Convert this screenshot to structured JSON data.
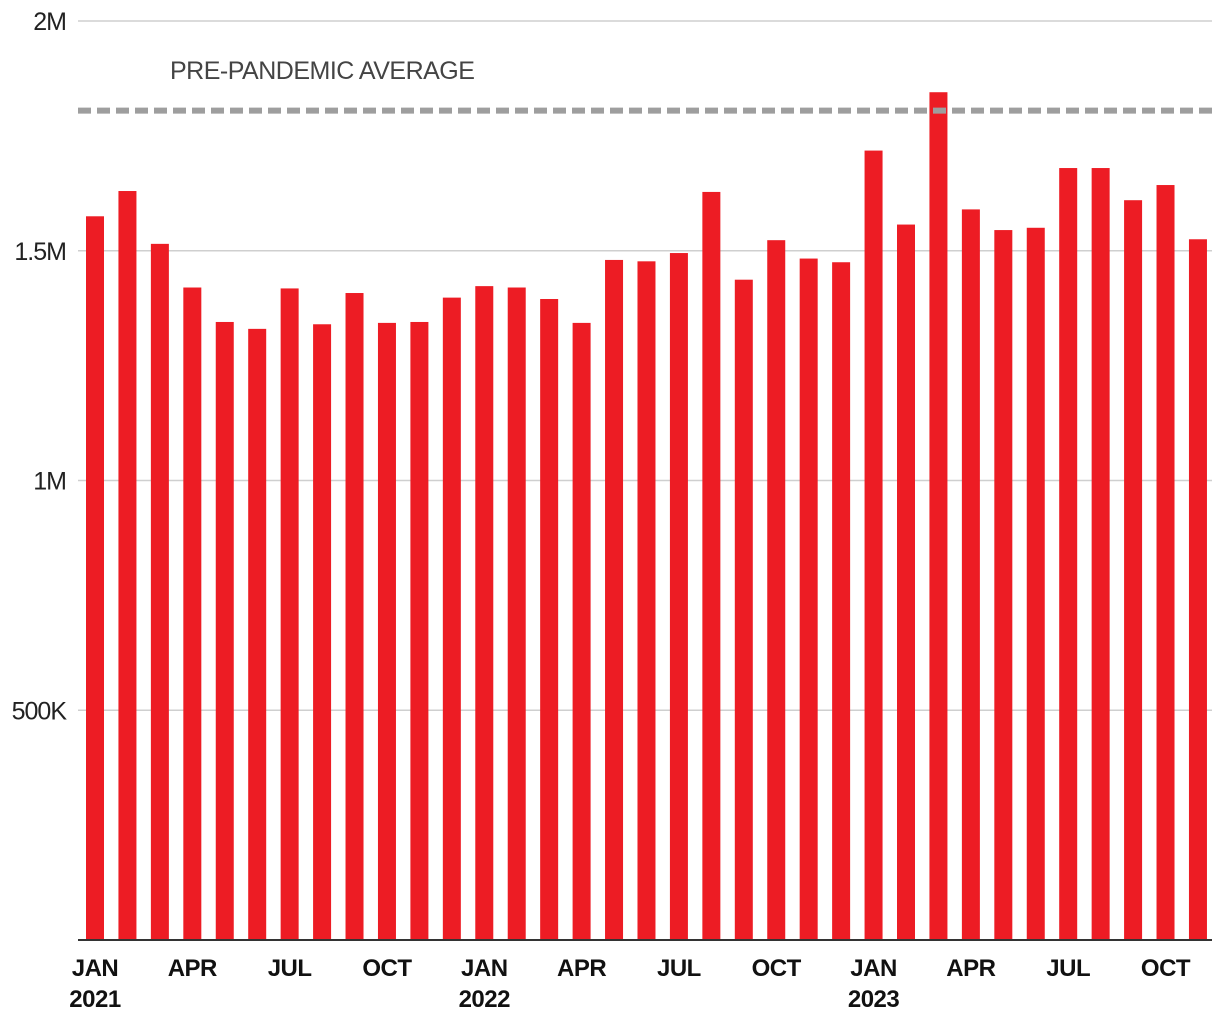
{
  "chart_data": {
    "type": "bar",
    "title": "",
    "xlabel": "",
    "ylabel": "",
    "ylim": [
      0,
      2000000
    ],
    "y_ticks": [
      {
        "value": 500000,
        "label": "500K"
      },
      {
        "value": 1000000,
        "label": "1M"
      },
      {
        "value": 1500000,
        "label": "1.5M"
      },
      {
        "value": 2000000,
        "label": "2M"
      }
    ],
    "x_tick_labels": [
      {
        "index": 0,
        "month": "JAN",
        "year": "2021"
      },
      {
        "index": 3,
        "month": "APR",
        "year": ""
      },
      {
        "index": 6,
        "month": "JUL",
        "year": ""
      },
      {
        "index": 9,
        "month": "OCT",
        "year": ""
      },
      {
        "index": 12,
        "month": "JAN",
        "year": "2022"
      },
      {
        "index": 15,
        "month": "APR",
        "year": ""
      },
      {
        "index": 18,
        "month": "JUL",
        "year": ""
      },
      {
        "index": 21,
        "month": "OCT",
        "year": ""
      },
      {
        "index": 24,
        "month": "JAN",
        "year": "2023"
      },
      {
        "index": 27,
        "month": "APR",
        "year": ""
      },
      {
        "index": 30,
        "month": "JUL",
        "year": ""
      },
      {
        "index": 33,
        "month": "OCT",
        "year": ""
      }
    ],
    "categories": [
      "2021-01",
      "2021-02",
      "2021-03",
      "2021-04",
      "2021-05",
      "2021-06",
      "2021-07",
      "2021-08",
      "2021-09",
      "2021-10",
      "2021-11",
      "2021-12",
      "2022-01",
      "2022-02",
      "2022-03",
      "2022-04",
      "2022-05",
      "2022-06",
      "2022-07",
      "2022-08",
      "2022-09",
      "2022-10",
      "2022-11",
      "2022-12",
      "2023-01",
      "2023-02",
      "2023-03",
      "2023-04",
      "2023-05",
      "2023-06",
      "2023-07",
      "2023-08",
      "2023-09",
      "2023-10",
      "2023-11"
    ],
    "values": [
      1575000,
      1630000,
      1515000,
      1420000,
      1345000,
      1330000,
      1418000,
      1340000,
      1408000,
      1343000,
      1345000,
      1398000,
      1423000,
      1420000,
      1395000,
      1343000,
      1480000,
      1477000,
      1495000,
      1628000,
      1437000,
      1523000,
      1483000,
      1475000,
      1718000,
      1557000,
      1845000,
      1590000,
      1545000,
      1550000,
      1680000,
      1680000,
      1610000,
      1643000,
      1525000
    ],
    "bar_color": "#ed1c24",
    "reference_line": {
      "label": "PRE-PANDEMIC AVERAGE",
      "value": 1805000,
      "color": "#9e9e9e",
      "style": "dashed"
    },
    "grid": true,
    "legend": "none"
  }
}
